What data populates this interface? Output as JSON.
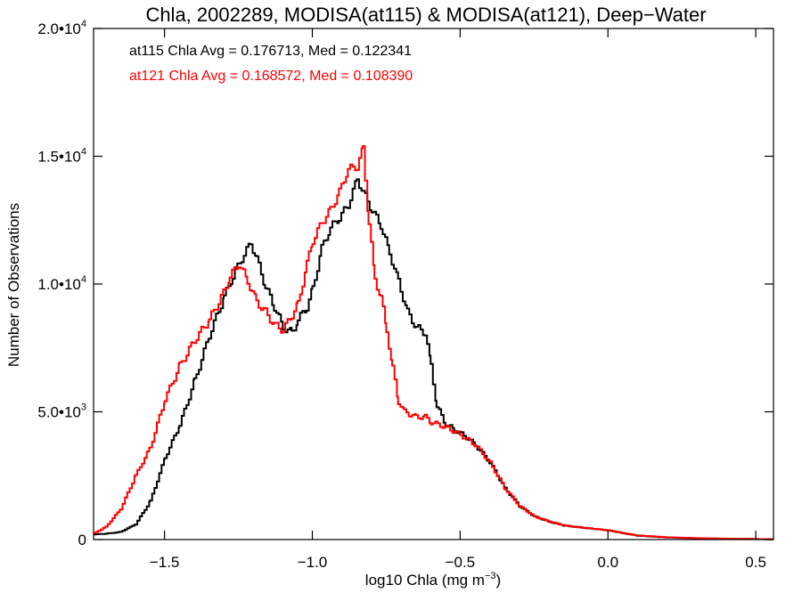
{
  "chart_data": {
    "type": "line",
    "title": "Chla, 2002289, MODISA(at115) & MODISA(at121), Deep−Water",
    "xlabel": "log10 Chla (mg m",
    "xlabel_sup": "−3",
    "xlabel_end": ")",
    "ylabel": "Number of Observations",
    "xlim": [
      -1.74,
      0.56
    ],
    "ylim": [
      0,
      20000
    ],
    "grid": false,
    "x_ticks": [
      {
        "value": -1.5,
        "label": "−1.5"
      },
      {
        "value": -1.0,
        "label": "−1.0"
      },
      {
        "value": -0.5,
        "label": "−0.5"
      },
      {
        "value": 0.0,
        "label": "0.0"
      },
      {
        "value": 0.5,
        "label": "0.5"
      }
    ],
    "y_ticks": [
      {
        "value": 0,
        "base": "0",
        "exp": ""
      },
      {
        "value": 5000,
        "base": "5.0•10",
        "exp": "3"
      },
      {
        "value": 10000,
        "base": "1.0•10",
        "exp": "4"
      },
      {
        "value": 15000,
        "base": "1.5•10",
        "exp": "4"
      },
      {
        "value": 20000,
        "base": "2.0•10",
        "exp": "4"
      }
    ],
    "annotations": [
      {
        "text": "at115 Chla Avg = 0.176713, Med = 0.122341",
        "color": "#000000"
      },
      {
        "text": "at121 Chla Avg = 0.168572, Med = 0.108390",
        "color": "#ff0000"
      }
    ],
    "series": [
      {
        "color": "#000000",
        "x": [
          -1.74,
          -1.7,
          -1.65,
          -1.6,
          -1.55,
          -1.5,
          -1.45,
          -1.4,
          -1.35,
          -1.3,
          -1.27,
          -1.24,
          -1.21,
          -1.19,
          -1.16,
          -1.13,
          -1.1,
          -1.07,
          -1.05,
          -1.02,
          -1.0,
          -0.97,
          -0.94,
          -0.91,
          -0.88,
          -0.85,
          -0.83,
          -0.8,
          -0.77,
          -0.74,
          -0.71,
          -0.68,
          -0.65,
          -0.62,
          -0.6,
          -0.58,
          -0.55,
          -0.52,
          -0.48,
          -0.45,
          -0.4,
          -0.35,
          -0.3,
          -0.25,
          -0.2,
          -0.15,
          -0.1,
          -0.05,
          0.0,
          0.05,
          0.1,
          0.2,
          0.3,
          0.4,
          0.5,
          0.56
        ],
        "values": [
          200,
          230,
          300,
          600,
          1500,
          3200,
          4500,
          6200,
          8000,
          9500,
          10300,
          11000,
          11600,
          11000,
          9900,
          9100,
          8300,
          8100,
          8600,
          9100,
          9800,
          11400,
          12200,
          12600,
          13100,
          14100,
          13600,
          12900,
          12300,
          11200,
          10100,
          8900,
          8300,
          8100,
          6800,
          5200,
          4500,
          4300,
          4000,
          3700,
          3000,
          2000,
          1300,
          900,
          700,
          550,
          480,
          420,
          360,
          250,
          150,
          80,
          50,
          30,
          20,
          10
        ]
      },
      {
        "color": "#ff0000",
        "x": [
          -1.74,
          -1.7,
          -1.65,
          -1.6,
          -1.55,
          -1.5,
          -1.45,
          -1.4,
          -1.35,
          -1.3,
          -1.28,
          -1.25,
          -1.22,
          -1.19,
          -1.16,
          -1.13,
          -1.1,
          -1.07,
          -1.05,
          -1.02,
          -1.0,
          -0.97,
          -0.94,
          -0.91,
          -0.88,
          -0.85,
          -0.83,
          -0.81,
          -0.79,
          -0.77,
          -0.75,
          -0.73,
          -0.71,
          -0.69,
          -0.67,
          -0.65,
          -0.62,
          -0.6,
          -0.55,
          -0.5,
          -0.45,
          -0.4,
          -0.35,
          -0.3,
          -0.25,
          -0.2,
          -0.15,
          -0.1,
          -0.05,
          0.0,
          0.05,
          0.1,
          0.2,
          0.3,
          0.4,
          0.5,
          0.56
        ],
        "values": [
          250,
          500,
          1200,
          2500,
          3600,
          5500,
          6800,
          7800,
          8600,
          9700,
          10300,
          10800,
          10100,
          9300,
          8900,
          8400,
          8200,
          8800,
          9200,
          10800,
          11700,
          12400,
          12900,
          13600,
          14500,
          14600,
          15300,
          12400,
          10200,
          9500,
          8200,
          6700,
          5400,
          5000,
          4900,
          4800,
          4800,
          4600,
          4400,
          4100,
          3700,
          3000,
          2000,
          1300,
          900,
          700,
          550,
          480,
          420,
          360,
          250,
          160,
          90,
          55,
          35,
          20,
          10
        ]
      }
    ]
  }
}
